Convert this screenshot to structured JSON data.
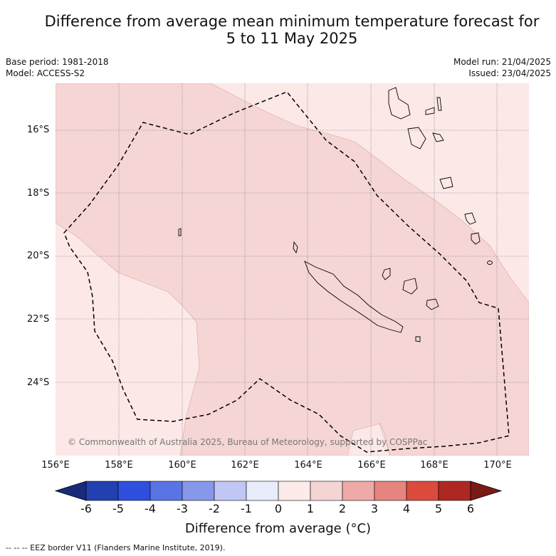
{
  "title": {
    "line1": "Difference from average mean minimum temperature forecast for",
    "line2": "5 to 11 May 2025"
  },
  "meta_left": {
    "base_period": "Base period: 1981-2018",
    "model": "Model: ACCESS-S2"
  },
  "meta_right": {
    "model_run": "Model run: 21/04/2025",
    "issued": "Issued: 23/04/2025"
  },
  "map": {
    "lat_labels": [
      "16°S",
      "18°S",
      "20°S",
      "22°S",
      "24°S"
    ],
    "lon_labels": [
      "156°E",
      "158°E",
      "160°E",
      "162°E",
      "164°E",
      "166°E",
      "168°E",
      "170°E"
    ],
    "copyright": "© Commonwealth of Australia 2025, Bureau of Meteorology, supported by COSPPac",
    "dominant_anomaly_range": "1 to 2",
    "fringe_anomaly_range": "0 to 1"
  },
  "colorbar": {
    "title": "Difference from average (°C)",
    "ticks": [
      "-6",
      "-5",
      "-4",
      "-3",
      "-2",
      "-1",
      "0",
      "1",
      "2",
      "3",
      "4",
      "5",
      "6"
    ],
    "colors": [
      "#1a2a7a",
      "#2340b0",
      "#2f4fde",
      "#5a74e6",
      "#8797ea",
      "#c0c7f4",
      "#e8ecfb",
      "#fcebe9",
      "#f5d5d3",
      "#eeaaa6",
      "#e6847f",
      "#dc4a3e",
      "#ad2822",
      "#7b1a14"
    ]
  },
  "footer": "--  --  -- EEZ border V11 (Flanders Marine Institute, 2019)."
}
